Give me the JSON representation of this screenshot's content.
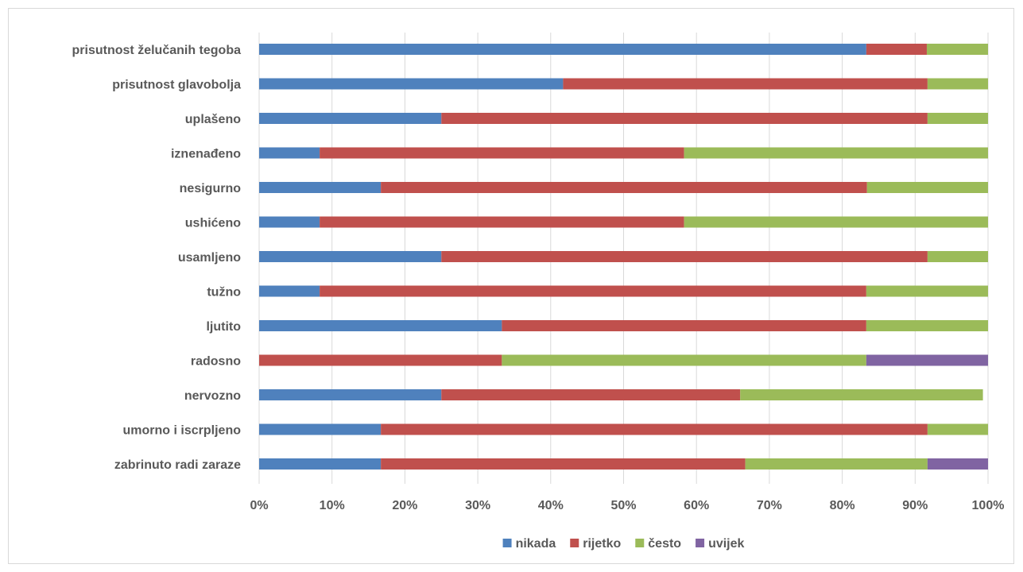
{
  "chart_data": {
    "type": "bar",
    "orientation": "horizontal",
    "stacked": "percent",
    "categories": [
      "prisutnost želučanih tegoba",
      "prisutnost glavobolja",
      "uplašeno",
      "iznenađeno",
      "nesigurno",
      "ushićeno",
      "usamljeno",
      "tužno",
      "ljutito",
      "radosno",
      "nervozno",
      "umorno i iscrpljeno",
      "zabrinuto radi zaraze"
    ],
    "series": [
      {
        "name": "nikada",
        "color": "#4f81bd",
        "values": [
          83.3,
          41.7,
          25.0,
          8.3,
          16.7,
          8.3,
          25.0,
          8.3,
          33.3,
          0.0,
          25.0,
          16.7,
          16.7
        ]
      },
      {
        "name": "rijetko",
        "color": "#c0504d",
        "values": [
          8.3,
          50.0,
          66.7,
          50.0,
          66.7,
          50.0,
          66.7,
          75.0,
          50.0,
          33.3,
          41.0,
          75.0,
          50.0
        ]
      },
      {
        "name": "često",
        "color": "#9bbb59",
        "values": [
          8.4,
          8.3,
          8.3,
          41.7,
          16.6,
          41.7,
          8.3,
          16.7,
          16.7,
          50.0,
          33.3,
          8.3,
          25.0
        ]
      },
      {
        "name": "uvijek",
        "color": "#8064a2",
        "values": [
          0.0,
          0.0,
          0.0,
          0.0,
          0.0,
          0.0,
          0.0,
          0.0,
          0.0,
          16.7,
          0.0,
          0.0,
          8.3
        ]
      }
    ],
    "xlim": [
      0,
      100
    ],
    "xticks": [
      "0%",
      "10%",
      "20%",
      "30%",
      "40%",
      "50%",
      "60%",
      "70%",
      "80%",
      "90%",
      "100%"
    ],
    "grid": true,
    "legend_position": "bottom"
  }
}
